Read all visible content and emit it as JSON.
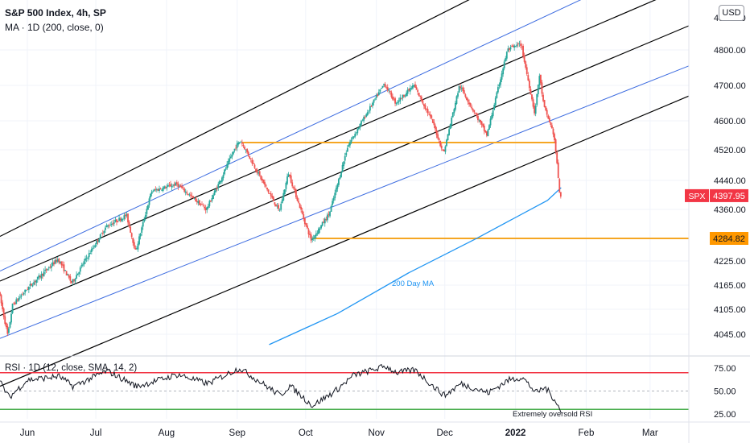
{
  "header": {
    "title": "S&P 500 Index, 4h, SP",
    "ma_label": "MA · 1D (200, close, 0)",
    "currency": "USD"
  },
  "rsi": {
    "label": "RSI · 1D (12, close, SMA, 14, 2)",
    "annotation": "Extremely oversold RSI",
    "ticks": [
      "75.00",
      "50.00",
      "25.00"
    ],
    "levels": {
      "upper": 70,
      "lower": 30,
      "mid": 50
    },
    "upper_color": "#f23645",
    "lower_color": "#4caf50"
  },
  "price_axis": {
    "ticks": [
      "4880.00",
      "4800.00",
      "4700.00",
      "4600.00",
      "4520.00",
      "4440.00",
      "4360.00",
      "4284.82",
      "4225.00",
      "4165.00",
      "4105.00",
      "4045.00"
    ]
  },
  "time_axis": {
    "labels": [
      "Jun",
      "Jul",
      "Aug",
      "Sep",
      "Oct",
      "Nov",
      "Dec",
      "2022",
      "Feb",
      "Mar"
    ]
  },
  "price_tags": {
    "symbol": "SPX",
    "last_price": "4397.95",
    "support_price": "4284.82"
  },
  "annotations": {
    "ma_label": "200 Day MA"
  },
  "colors": {
    "up": "#26a69a",
    "down": "#ef5350",
    "ma": "#2196f3",
    "channel_outer": "#000000",
    "channel_inner": "#3d6ce0",
    "horizontal": "#f5a623",
    "last_tag": "#f23645",
    "support_tag": "#ff9800",
    "grid": "#f0f3fa"
  },
  "chart_data": {
    "type": "candlestick",
    "title": "S&P 500 Index, 4h, SP",
    "ylim": [
      4000,
      4900
    ],
    "price_path": [
      [
        "2021-05-20",
        4150
      ],
      [
        "2021-05-24",
        4040
      ],
      [
        "2021-05-26",
        4115
      ],
      [
        "2021-06-03",
        4165
      ],
      [
        "2021-06-15",
        4230
      ],
      [
        "2021-06-21",
        4170
      ],
      [
        "2021-07-06",
        4315
      ],
      [
        "2021-07-15",
        4345
      ],
      [
        "2021-07-19",
        4250
      ],
      [
        "2021-07-26",
        4410
      ],
      [
        "2021-08-06",
        4430
      ],
      [
        "2021-08-19",
        4360
      ],
      [
        "2021-09-01",
        4530
      ],
      [
        "2021-09-03",
        4545
      ],
      [
        "2021-09-20",
        4355
      ],
      [
        "2021-09-24",
        4460
      ],
      [
        "2021-10-01",
        4330
      ],
      [
        "2021-10-04",
        4280
      ],
      [
        "2021-10-12",
        4350
      ],
      [
        "2021-10-20",
        4530
      ],
      [
        "2021-11-05",
        4705
      ],
      [
        "2021-11-10",
        4650
      ],
      [
        "2021-11-18",
        4700
      ],
      [
        "2021-11-26",
        4600
      ],
      [
        "2021-12-01",
        4510
      ],
      [
        "2021-12-08",
        4700
      ],
      [
        "2021-12-14",
        4630
      ],
      [
        "2021-12-20",
        4560
      ],
      [
        "2021-12-29",
        4800
      ],
      [
        "2022-01-04",
        4815
      ],
      [
        "2022-01-10",
        4620
      ],
      [
        "2022-01-12",
        4730
      ],
      [
        "2022-01-14",
        4640
      ],
      [
        "2022-01-18",
        4570
      ],
      [
        "2022-01-19",
        4530
      ],
      [
        "2022-01-21",
        4397.95
      ]
    ],
    "series": [
      {
        "name": "MA · 1D (200, close, 0)",
        "type": "line",
        "values": [
          [
            "2021-09-15",
            4020
          ],
          [
            "2021-10-15",
            4095
          ],
          [
            "2021-11-15",
            4195
          ],
          [
            "2021-12-15",
            4285
          ],
          [
            "2022-01-15",
            4385
          ],
          [
            "2022-01-21",
            4420
          ]
        ]
      }
    ],
    "channel_lines": [
      {
        "style": "outer",
        "from": [
          "2021-05-20",
          4290
        ],
        "to": [
          "2022-03-18",
          5200
        ]
      },
      {
        "style": "inner",
        "from": [
          "2021-05-20",
          4200
        ],
        "to": [
          "2022-03-18",
          5050
        ]
      },
      {
        "style": "outer",
        "from": [
          "2021-05-20",
          4175
        ],
        "to": [
          "2022-03-18",
          4960
        ]
      },
      {
        "style": "outer",
        "from": [
          "2021-05-20",
          4090
        ],
        "to": [
          "2022-03-18",
          4860
        ]
      },
      {
        "style": "inner",
        "from": [
          "2021-05-20",
          4035
        ],
        "to": [
          "2022-03-18",
          4755
        ]
      },
      {
        "style": "outer",
        "from": [
          "2021-05-20",
          3920
        ],
        "to": [
          "2022-03-18",
          4670
        ]
      }
    ],
    "horizontal_levels": [
      {
        "value": 4540,
        "from": "2021-09-03",
        "to": "2022-01-19"
      },
      {
        "value": 4284.82,
        "from": "2021-10-04",
        "to": "2022-03-18"
      }
    ],
    "rsi": {
      "name": "RSI · 1D (12, close, SMA, 14, 2)",
      "ylim": [
        20,
        85
      ],
      "values": [
        [
          "2021-05-20",
          60
        ],
        [
          "2021-05-24",
          43
        ],
        [
          "2021-06-01",
          62
        ],
        [
          "2021-06-15",
          66
        ],
        [
          "2021-06-21",
          55
        ],
        [
          "2021-07-06",
          72
        ],
        [
          "2021-07-19",
          55
        ],
        [
          "2021-08-06",
          68
        ],
        [
          "2021-08-19",
          58
        ],
        [
          "2021-09-02",
          75
        ],
        [
          "2021-09-20",
          45
        ],
        [
          "2021-09-24",
          56
        ],
        [
          "2021-10-04",
          34
        ],
        [
          "2021-10-14",
          50
        ],
        [
          "2021-10-22",
          67
        ],
        [
          "2021-11-05",
          77
        ],
        [
          "2021-11-10",
          70
        ],
        [
          "2021-11-18",
          73
        ],
        [
          "2021-11-26",
          55
        ],
        [
          "2021-12-01",
          45
        ],
        [
          "2021-12-08",
          58
        ],
        [
          "2021-12-20",
          48
        ],
        [
          "2021-12-29",
          62
        ],
        [
          "2022-01-04",
          65
        ],
        [
          "2022-01-10",
          48
        ],
        [
          "2022-01-14",
          54
        ],
        [
          "2022-01-19",
          38
        ],
        [
          "2022-01-21",
          26
        ]
      ]
    }
  }
}
